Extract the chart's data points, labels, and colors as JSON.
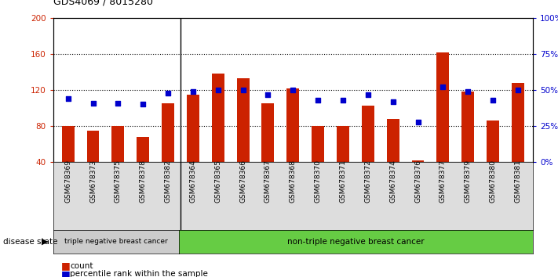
{
  "title": "GDS4069 / 8015280",
  "samples": [
    "GSM678369",
    "GSM678373",
    "GSM678375",
    "GSM678378",
    "GSM678382",
    "GSM678364",
    "GSM678365",
    "GSM678366",
    "GSM678367",
    "GSM678368",
    "GSM678370",
    "GSM678371",
    "GSM678372",
    "GSM678374",
    "GSM678376",
    "GSM678377",
    "GSM678379",
    "GSM678380",
    "GSM678381"
  ],
  "counts": [
    80,
    75,
    80,
    68,
    105,
    115,
    138,
    133,
    105,
    122,
    80,
    80,
    103,
    88,
    42,
    162,
    118,
    86,
    128
  ],
  "percentiles": [
    44,
    41,
    41,
    40,
    48,
    49,
    50,
    50,
    47,
    50,
    43,
    43,
    47,
    42,
    28,
    52,
    49,
    43,
    50
  ],
  "triple_negative_count": 5,
  "group1_label": "triple negative breast cancer",
  "group2_label": "non-triple negative breast cancer",
  "disease_state_label": "disease state",
  "legend_count": "count",
  "legend_percentile": "percentile rank within the sample",
  "ylim_left": [
    40,
    200
  ],
  "ylim_right": [
    0,
    100
  ],
  "yticks_left": [
    40,
    80,
    120,
    160,
    200
  ],
  "yticks_right": [
    0,
    25,
    50,
    75,
    100
  ],
  "bar_color": "#cc2200",
  "dot_color": "#0000cc",
  "bar_width": 0.5,
  "bg_color": "#ffffff",
  "plot_bg": "#ffffff",
  "grid_color": "#000000",
  "tick_label_color_left": "#cc2200",
  "tick_label_color_right": "#0000cc",
  "group1_bg": "#cccccc",
  "group2_bg": "#66cc44",
  "xticklabel_bg": "#dddddd"
}
